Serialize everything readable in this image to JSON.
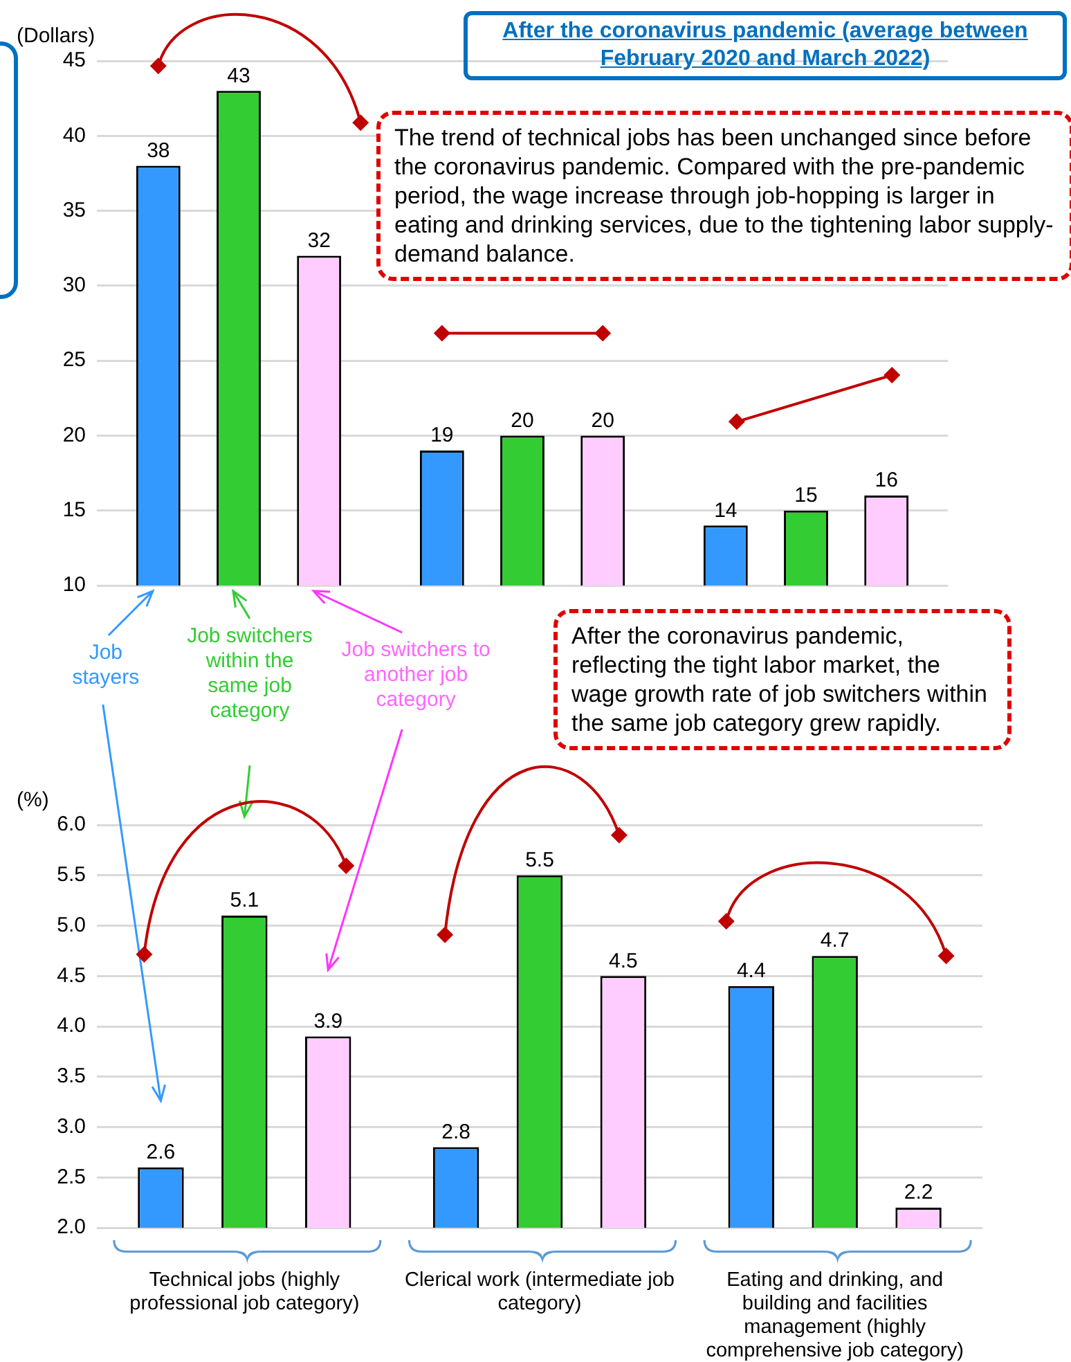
{
  "chart_data": [
    {
      "type": "bar",
      "title": "After the coronavirus pandemic (average between February 2020 and March 2022)",
      "ylabel": "(Dollars)",
      "categories": [
        null,
        null,
        null
      ],
      "tick_labels": "y",
      "legend": "bottom left",
      "ylim": [
        10,
        45
      ],
      "yticks": [
        10,
        15,
        20,
        25,
        30,
        35,
        40,
        45
      ],
      "grid": "y",
      "data_labels": true,
      "series": [
        {
          "name": "Job stayers",
          "color": "#3399ff",
          "values": [
            38,
            19,
            14
          ]
        },
        {
          "name": "Job switchers within the same job category",
          "color": "#33cc33",
          "values": [
            43,
            20,
            15
          ]
        },
        {
          "name": "Job switchers to another job category",
          "color": "#ffccff",
          "values": [
            32,
            20,
            16
          ]
        }
      ],
      "annotations": [
        "The trend of technical jobs has been unchanged since before the coronavirus pandemic. Compared with the pre-pandemic period, the wage increase through job-hopping is larger in eating and drinking services, due to the tightening labor supply-demand balance."
      ]
    },
    {
      "type": "bar",
      "ylabel": "(%)",
      "categories": [
        "Technical jobs (highly professional job category)",
        "Clerical work (intermediate job category)",
        "Eating and drinking, and building and facilities management (highly comprehensive job category)"
      ],
      "ylim": [
        2,
        6
      ],
      "yticks": [
        {
          "value": 2,
          "label": "2.0"
        },
        2.5,
        {
          "value": 3,
          "label": "3.0"
        },
        3.5,
        {
          "value": 4,
          "label": "4.0"
        },
        4.5,
        {
          "value": 5,
          "label": "5.0"
        },
        5.5,
        {
          "value": 6,
          "label": "6.0"
        }
      ],
      "grid": "y",
      "data_labels": true,
      "series": [
        {
          "color": "#3399ff",
          "values": [
            2.6,
            2.8,
            4.4
          ]
        },
        {
          "color": "#33cc33",
          "values": [
            5.1,
            5.5,
            4.7
          ]
        },
        {
          "color": "#ffccff",
          "values": [
            3.9,
            4.5,
            2.2
          ]
        }
      ],
      "annotations": [
        "After the coronavirus pandemic, reflecting the tight labor market, the wage growth rate of job switchers within the same job category grew rapidly."
      ]
    }
  ]
}
